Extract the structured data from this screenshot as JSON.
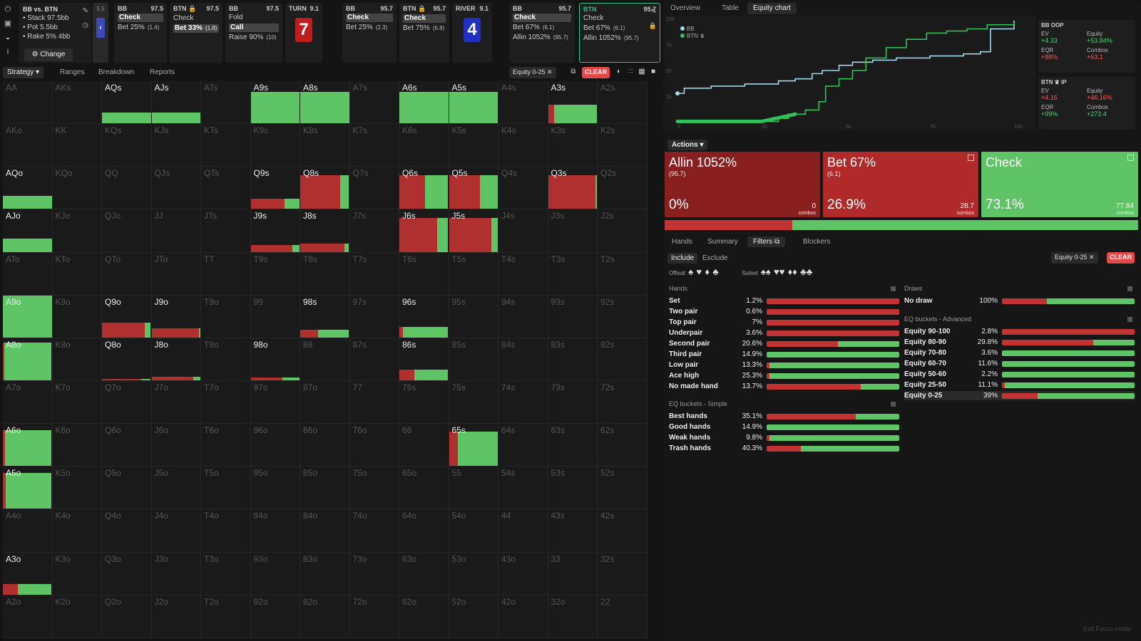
{
  "info": {
    "title": "BB vs. BTN",
    "stack": "• Stack 97.5bb",
    "pot": "• Pot 5.5bb",
    "rake": "• Rake 5% 4bb",
    "change_label": "⚙ Change"
  },
  "nav_back": {
    "label": "5.5"
  },
  "cards": [
    {
      "player": "BB",
      "stack": "97.5",
      "rows": [
        {
          "text": "Check",
          "size": "",
          "sel": true
        },
        {
          "text": "Bet 25%",
          "size": "(1.4)",
          "sel": false
        }
      ]
    },
    {
      "player": "BTN 🔒",
      "stack": "97.5",
      "rows": [
        {
          "text": "Check",
          "size": "",
          "sel": false
        },
        {
          "text": "Bet 33%",
          "size": "(1.8)",
          "sel": true
        }
      ]
    },
    {
      "player": "BB",
      "stack": "97.5",
      "rows": [
        {
          "text": "Fold",
          "size": "",
          "sel": false
        },
        {
          "text": "Call",
          "size": "",
          "sel": true
        },
        {
          "text": "Raise 90%",
          "size": "(10)",
          "sel": false
        }
      ]
    },
    {
      "player": "TURN",
      "stack": "9.1",
      "board": "7",
      "color": "#c01e1e"
    },
    {
      "player": "BB",
      "stack": "95.7",
      "rows": [
        {
          "text": "Check",
          "size": "",
          "sel": true
        },
        {
          "text": "Bet 25%",
          "size": "(2.3)",
          "sel": false
        }
      ]
    },
    {
      "player": "BTN 🔒",
      "stack": "95.7",
      "rows": [
        {
          "text": "Check",
          "size": "",
          "sel": true
        },
        {
          "text": "Bet 75%",
          "size": "(6.8)",
          "sel": false
        }
      ]
    },
    {
      "player": "RIVER",
      "stack": "9.1",
      "board": "4",
      "color": "#2030c0"
    },
    {
      "player": "BB",
      "stack": "95.7",
      "rows": [
        {
          "text": "Check",
          "size": "",
          "sel": true
        },
        {
          "text": "Bet 67%",
          "size": "(6.1)",
          "sel": false
        },
        {
          "text": "Allin 1052%",
          "size": "(95.7)",
          "sel": false
        }
      ]
    },
    {
      "player": "BTN",
      "stack": "95.7",
      "active": true,
      "rows": [
        {
          "text": "Check",
          "size": "",
          "sel": false
        },
        {
          "text": "Bet 67%",
          "size": "(6.1)",
          "sel": false
        },
        {
          "text": "Allin 1052%",
          "size": "(95.7)",
          "sel": false
        }
      ]
    }
  ],
  "left_tabs": [
    "Strategy ▾",
    "Ranges",
    "Breakdown",
    "Reports"
  ],
  "filter_chip": "Equity 0-25 ✕",
  "clear_label": "CLEAR",
  "grid": [
    [
      "AA",
      "AKs",
      "AQs",
      "AJs",
      "ATs",
      "A9s",
      "A8s",
      "A7s",
      "A6s",
      "A5s",
      "A4s",
      "A3s",
      "A2s"
    ],
    [
      "AKo",
      "KK",
      "KQs",
      "KJs",
      "KTs",
      "K9s",
      "K8s",
      "K7s",
      "K6s",
      "K5s",
      "K4s",
      "K3s",
      "K2s"
    ],
    [
      "AQo",
      "KQo",
      "QQ",
      "QJs",
      "QTs",
      "Q9s",
      "Q8s",
      "Q7s",
      "Q6s",
      "Q5s",
      "Q4s",
      "Q3s",
      "Q2s"
    ],
    [
      "AJo",
      "KJo",
      "QJo",
      "JJ",
      "JTs",
      "J9s",
      "J8s",
      "J7s",
      "J6s",
      "J5s",
      "J4s",
      "J3s",
      "J2s"
    ],
    [
      "ATo",
      "KTo",
      "QTo",
      "JTo",
      "TT",
      "T9s",
      "T8s",
      "T7s",
      "T6s",
      "T5s",
      "T4s",
      "T3s",
      "T2s"
    ],
    [
      "A9o",
      "K9o",
      "Q9o",
      "J9o",
      "T9o",
      "99",
      "98s",
      "97s",
      "96s",
      "95s",
      "94s",
      "93s",
      "92s"
    ],
    [
      "A8o",
      "K8o",
      "Q8o",
      "J8o",
      "T8o",
      "98o",
      "88",
      "87s",
      "86s",
      "85s",
      "84s",
      "83s",
      "82s"
    ],
    [
      "A7o",
      "K7o",
      "Q7o",
      "J7o",
      "T7o",
      "97o",
      "87o",
      "77",
      "76s",
      "75s",
      "74s",
      "73s",
      "72s"
    ],
    [
      "A6o",
      "K6o",
      "Q6o",
      "J6o",
      "T6o",
      "96o",
      "86o",
      "76o",
      "66",
      "65s",
      "64s",
      "63s",
      "62s"
    ],
    [
      "A5o",
      "K5o",
      "Q5o",
      "J5o",
      "T5o",
      "95o",
      "85o",
      "75o",
      "65o",
      "55",
      "54s",
      "53s",
      "52s"
    ],
    [
      "A4o",
      "K4o",
      "Q4o",
      "J4o",
      "T4o",
      "94o",
      "84o",
      "74o",
      "64o",
      "54o",
      "44",
      "43s",
      "42s"
    ],
    [
      "A3o",
      "K3o",
      "Q3o",
      "J3o",
      "T3o",
      "93o",
      "83o",
      "73o",
      "63o",
      "53o",
      "43o",
      "33",
      "32s"
    ],
    [
      "A2o",
      "K2o",
      "Q2o",
      "J2o",
      "T2o",
      "92o",
      "82o",
      "72o",
      "62o",
      "52o",
      "42o",
      "32o",
      "22"
    ]
  ],
  "cell_fills": {
    "AQs": {
      "h": 0.25,
      "r": 0
    },
    "AJs": {
      "h": 0.25,
      "r": 0
    },
    "A9s": {
      "h": 0.75,
      "r": 0
    },
    "A8s": {
      "h": 0.75,
      "r": 0
    },
    "A6s": {
      "h": 0.75,
      "r": 0
    },
    "A5s": {
      "h": 0.75,
      "r": 0
    },
    "A3s": {
      "h": 0.45,
      "r": 0.12
    },
    "AQo": {
      "h": 0.32,
      "r": 0
    },
    "Q9s": {
      "h": 0.25,
      "r": 0.7
    },
    "Q8s": {
      "h": 0.8,
      "r": 0.82
    },
    "Q6s": {
      "h": 0.8,
      "r": 0.53
    },
    "Q5s": {
      "h": 0.8,
      "r": 0.63
    },
    "Q3s": {
      "h": 0.8,
      "r": 0.97
    },
    "AJo": {
      "h": 0.32,
      "r": 0
    },
    "J9s": {
      "h": 0.17,
      "r": 0.85
    },
    "J8s": {
      "h": 0.2,
      "r": 0.9
    },
    "J6s": {
      "h": 0.8,
      "r": 0.77
    },
    "J5s": {
      "h": 0.8,
      "r": 0.87
    },
    "A9o": {
      "h": 1.0,
      "r": 0
    },
    "Q9o": {
      "h": 0.35,
      "r": 0.87
    },
    "J9o": {
      "h": 0.22,
      "r": 0.97
    },
    "98s": {
      "h": 0.18,
      "r": 0.37
    },
    "96s": {
      "h": 0.25,
      "r": 0.08
    },
    "A8o": {
      "h": 0.9,
      "r": 0.03
    },
    "Q8o": {
      "h": 0.04,
      "r": 0.8
    },
    "J8o": {
      "h": 0.08,
      "r": 0.85
    },
    "98o": {
      "h": 0.06,
      "r": 0.65
    },
    "86s": {
      "h": 0.25,
      "r": 0.3
    },
    "A6o": {
      "h": 0.85,
      "r": 0.05
    },
    "65s": {
      "h": 0.82,
      "r": 0.18
    },
    "A5o": {
      "h": 0.85,
      "r": 0.06
    },
    "A3o": {
      "h": 0.25,
      "r": 0.3
    }
  },
  "highlight": [
    "AQs",
    "AJs",
    "A9s",
    "A8s",
    "A6s",
    "A5s",
    "A3s",
    "AQo",
    "Q9s",
    "Q8s",
    "Q6s",
    "Q5s",
    "Q3s",
    "AJo",
    "J9s",
    "J8s",
    "J6s",
    "J5s",
    "A9o",
    "Q9o",
    "J9o",
    "98s",
    "96s",
    "A8o",
    "Q8o",
    "J8o",
    "98o",
    "86s",
    "A6o",
    "65s",
    "A5o",
    "A3o"
  ],
  "right_tabs": [
    "Overview",
    "Table",
    "Equity chart"
  ],
  "equity_chart": {
    "legend": [
      "BB",
      "BTN ♛"
    ],
    "x_ticks": [
      "0",
      "25",
      "50",
      "75",
      "100"
    ],
    "y_ticks": [
      "100",
      "75",
      "50",
      "25"
    ],
    "colors": {
      "bb": "#9fd8ee",
      "btn": "#33c05a"
    }
  },
  "stats": {
    "bb": {
      "title": "BB  OOP",
      "ev_label": "EV",
      "ev": "+4.33",
      "eq_label": "Equity",
      "eq": "+53.84%",
      "eqr_label": "EQR",
      "eqr": "+88%",
      "combos_label": "Combos",
      "combos": "+63.1"
    },
    "btn": {
      "title": "BTN ♛ IP",
      "ev_label": "EV",
      "ev": "+4.16",
      "eq_label": "Equity",
      "eq": "+46.16%",
      "eqr_label": "EQR",
      "eqr": "+99%",
      "combos_label": "Combos",
      "combos": "+273.4"
    }
  },
  "actions_label": "Actions ▾",
  "actions": [
    {
      "name": "Allin 1052%",
      "size": "(95.7)",
      "pct": "0%",
      "combos": "0",
      "color": "#8a1f1f",
      "share": 0.0
    },
    {
      "name": "Bet 67%",
      "size": "(6.1)",
      "pct": "26.9%",
      "combos": "28.7",
      "color": "#b02a2a",
      "share": 26.9
    },
    {
      "name": "Check",
      "size": "",
      "pct": "73.1%",
      "combos": "77.84",
      "color": "#5ec465",
      "share": 73.1
    }
  ],
  "combos_word": "combos",
  "filter_tabs": [
    "Hands",
    "Summary",
    "Filters ⧉",
    "Blockers"
  ],
  "include_label": "Include",
  "exclude_label": "Exclude",
  "offsuit_label": "Offsuit",
  "suited_label": "Suited",
  "suit_icons_offsuit": [
    "♠",
    "♥",
    "♦",
    "♣"
  ],
  "suit_icons_suited": [
    "♠♠",
    "♥♥",
    "♦♦",
    "♣♣"
  ],
  "hands_title": "Hands",
  "hands": [
    {
      "name": "Set",
      "pct": "1.2%",
      "r": 1.0
    },
    {
      "name": "Two pair",
      "pct": "0.6%",
      "r": 1.0
    },
    {
      "name": "Top pair",
      "pct": "7%",
      "r": 1.0
    },
    {
      "name": "Underpair",
      "pct": "3.6%",
      "r": 1.0
    },
    {
      "name": "Second pair",
      "pct": "20.6%",
      "r": 0.54
    },
    {
      "name": "Third pair",
      "pct": "14.9%",
      "r": 0.0
    },
    {
      "name": "Low pair",
      "pct": "13.3%",
      "r": 0.02
    },
    {
      "name": "Ace high",
      "pct": "25.3%",
      "r": 0.02
    },
    {
      "name": "No made hand",
      "pct": "13.7%",
      "r": 0.71
    }
  ],
  "eq_simple_title": "EQ buckets - Simple",
  "eq_simple": [
    {
      "name": "Best hands",
      "pct": "35.1%",
      "r": 0.67
    },
    {
      "name": "Good hands",
      "pct": "14.9%",
      "r": 0.0
    },
    {
      "name": "Weak hands",
      "pct": "9.8%",
      "r": 0.02
    },
    {
      "name": "Trash hands",
      "pct": "40.3%",
      "r": 0.26
    }
  ],
  "draws_title": "Draws",
  "draws": [
    {
      "name": "No draw",
      "pct": "100%",
      "r": 0.34
    }
  ],
  "eq_adv_title": "EQ buckets - Advanced",
  "eq_adv": [
    {
      "name": "Equity 90-100",
      "pct": "2.8%",
      "r": 1.0
    },
    {
      "name": "Equity 80-90",
      "pct": "29.8%",
      "r": 0.69
    },
    {
      "name": "Equity 70-80",
      "pct": "3.6%",
      "r": 0.0
    },
    {
      "name": "Equity 60-70",
      "pct": "11.6%",
      "r": 0.0
    },
    {
      "name": "Equity 50-60",
      "pct": "2.2%",
      "r": 0.0
    },
    {
      "name": "Equity 25-50",
      "pct": "11.1%",
      "r": 0.02
    },
    {
      "name": "Equity 0-25",
      "pct": "39%",
      "r": 0.27,
      "sel": true
    }
  ],
  "exit_label": "Exit Focus mode"
}
